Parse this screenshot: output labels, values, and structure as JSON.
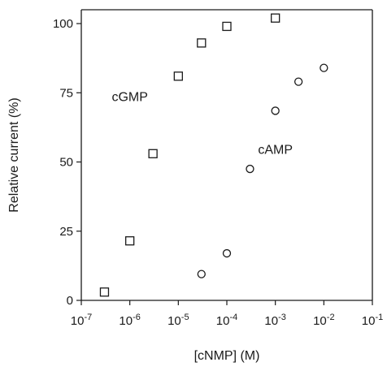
{
  "chart_data": {
    "type": "scatter",
    "xlabel": "[cNMP] (M)",
    "ylabel": "Relative current (%)",
    "x_scale": "log",
    "xlim": [
      1e-07,
      0.1
    ],
    "ylim": [
      0,
      105
    ],
    "x_ticks": [
      {
        "value": 1e-07,
        "base": "10",
        "exp": "-7"
      },
      {
        "value": 1e-06,
        "base": "10",
        "exp": "-6"
      },
      {
        "value": 1e-05,
        "base": "10",
        "exp": "-5"
      },
      {
        "value": 0.0001,
        "base": "10",
        "exp": "-4"
      },
      {
        "value": 0.001,
        "base": "10",
        "exp": "-3"
      },
      {
        "value": 0.01,
        "base": "10",
        "exp": "-2"
      },
      {
        "value": 0.1,
        "base": "10",
        "exp": "-1"
      }
    ],
    "y_ticks": [
      0,
      25,
      50,
      75,
      100
    ],
    "grid": false,
    "series": [
      {
        "name": "cGMP",
        "marker": "square",
        "label_anchor": {
          "x": 1e-06,
          "y": 72
        },
        "points": [
          {
            "x": 3e-07,
            "y": 3
          },
          {
            "x": 1e-06,
            "y": 21.5
          },
          {
            "x": 3e-06,
            "y": 53
          },
          {
            "x": 1e-05,
            "y": 81
          },
          {
            "x": 3e-05,
            "y": 93
          },
          {
            "x": 0.0001,
            "y": 99
          },
          {
            "x": 0.001,
            "y": 102
          }
        ]
      },
      {
        "name": "cAMP",
        "marker": "circle",
        "label_anchor": {
          "x": 0.001,
          "y": 53
        },
        "points": [
          {
            "x": 3e-05,
            "y": 9.5
          },
          {
            "x": 0.0001,
            "y": 17
          },
          {
            "x": 0.0003,
            "y": 47.5
          },
          {
            "x": 0.001,
            "y": 68.5
          },
          {
            "x": 0.003,
            "y": 79
          },
          {
            "x": 0.01,
            "y": 84
          }
        ]
      }
    ]
  },
  "colors": {
    "ink": "#1a1a1a",
    "background": "#ffffff"
  }
}
